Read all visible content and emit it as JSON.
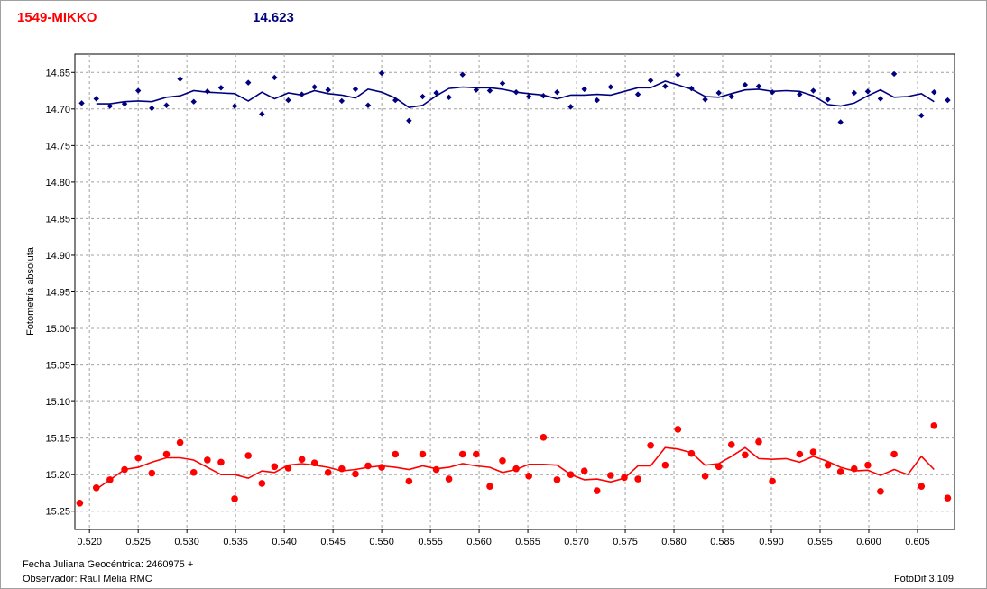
{
  "header": {
    "object_name": "1549-MIKKO",
    "magnitude_label": "14.623"
  },
  "footer": {
    "date_label": "Fecha Juliana Geocéntrica: 2460975 +",
    "observer_label": "Observador: Raul Melia RMC",
    "software_label": "FotoDif 3.109"
  },
  "chart_data": {
    "type": "scatter",
    "ylabel": "Fotometría absoluta",
    "xlabel": "",
    "xlim": [
      0.5185,
      0.6088
    ],
    "ylim": [
      14.625,
      15.275
    ],
    "y_inverted": true,
    "grid": true,
    "x_ticks": [
      "0.520",
      "0.525",
      "0.530",
      "0.535",
      "0.540",
      "0.545",
      "0.550",
      "0.555",
      "0.560",
      "0.565",
      "0.570",
      "0.575",
      "0.580",
      "0.585",
      "0.590",
      "0.595",
      "0.600",
      "0.605"
    ],
    "y_ticks": [
      "14.65",
      "14.70",
      "14.75",
      "14.80",
      "14.85",
      "14.90",
      "14.95",
      "15.00",
      "15.05",
      "15.10",
      "15.15",
      "15.20",
      "15.25"
    ],
    "series": [
      {
        "color": "#00007f",
        "marker": "diamond",
        "points": [
          [
            0.5192,
            14.692
          ],
          [
            0.5207,
            14.686
          ],
          [
            0.5221,
            14.696
          ],
          [
            0.5236,
            14.693
          ],
          [
            0.525,
            14.675
          ],
          [
            0.5264,
            14.699
          ],
          [
            0.5279,
            14.695
          ],
          [
            0.5293,
            14.659
          ],
          [
            0.5307,
            14.69
          ],
          [
            0.5321,
            14.676
          ],
          [
            0.5335,
            14.671
          ],
          [
            0.5349,
            14.696
          ],
          [
            0.5363,
            14.664
          ],
          [
            0.5377,
            14.707
          ],
          [
            0.539,
            14.657
          ],
          [
            0.5404,
            14.688
          ],
          [
            0.5418,
            14.68
          ],
          [
            0.5431,
            14.67
          ],
          [
            0.5445,
            14.674
          ],
          [
            0.5459,
            14.689
          ],
          [
            0.5473,
            14.673
          ],
          [
            0.5486,
            14.695
          ],
          [
            0.55,
            14.651
          ],
          [
            0.5514,
            14.688
          ],
          [
            0.5528,
            14.716
          ],
          [
            0.5542,
            14.683
          ],
          [
            0.5556,
            14.678
          ],
          [
            0.5569,
            14.684
          ],
          [
            0.5583,
            14.653
          ],
          [
            0.5597,
            14.674
          ],
          [
            0.5611,
            14.675
          ],
          [
            0.5624,
            14.665
          ],
          [
            0.5638,
            14.677
          ],
          [
            0.5651,
            14.683
          ],
          [
            0.5666,
            14.682
          ],
          [
            0.568,
            14.677
          ],
          [
            0.5694,
            14.697
          ],
          [
            0.5708,
            14.673
          ],
          [
            0.5721,
            14.688
          ],
          [
            0.5735,
            14.67
          ],
          [
            0.5763,
            14.68
          ],
          [
            0.5776,
            14.661
          ],
          [
            0.5791,
            14.669
          ],
          [
            0.5804,
            14.653
          ],
          [
            0.5818,
            14.672
          ],
          [
            0.5832,
            14.687
          ],
          [
            0.5846,
            14.678
          ],
          [
            0.5859,
            14.683
          ],
          [
            0.5873,
            14.667
          ],
          [
            0.5887,
            14.669
          ],
          [
            0.5901,
            14.677
          ],
          [
            0.5929,
            14.68
          ],
          [
            0.5943,
            14.675
          ],
          [
            0.5958,
            14.687
          ],
          [
            0.5971,
            14.718
          ],
          [
            0.5985,
            14.678
          ],
          [
            0.5999,
            14.676
          ],
          [
            0.6012,
            14.686
          ],
          [
            0.6026,
            14.652
          ],
          [
            0.6054,
            14.709
          ],
          [
            0.6067,
            14.677
          ],
          [
            0.6081,
            14.688
          ]
        ],
        "trend": [
          [
            0.5207,
            14.693
          ],
          [
            0.5221,
            14.693
          ],
          [
            0.5236,
            14.69
          ],
          [
            0.525,
            14.689
          ],
          [
            0.5264,
            14.69
          ],
          [
            0.5279,
            14.684
          ],
          [
            0.5293,
            14.682
          ],
          [
            0.5307,
            14.675
          ],
          [
            0.5321,
            14.677
          ],
          [
            0.5335,
            14.678
          ],
          [
            0.5349,
            14.679
          ],
          [
            0.5363,
            14.689
          ],
          [
            0.5377,
            14.677
          ],
          [
            0.539,
            14.686
          ],
          [
            0.5404,
            14.678
          ],
          [
            0.5418,
            14.681
          ],
          [
            0.5431,
            14.675
          ],
          [
            0.5445,
            14.679
          ],
          [
            0.5459,
            14.681
          ],
          [
            0.5473,
            14.685
          ],
          [
            0.5486,
            14.673
          ],
          [
            0.55,
            14.677
          ],
          [
            0.5514,
            14.685
          ],
          [
            0.5528,
            14.698
          ],
          [
            0.5542,
            14.695
          ],
          [
            0.5556,
            14.682
          ],
          [
            0.5569,
            14.672
          ],
          [
            0.5583,
            14.67
          ],
          [
            0.5597,
            14.671
          ],
          [
            0.5611,
            14.671
          ],
          [
            0.5624,
            14.673
          ],
          [
            0.5638,
            14.677
          ],
          [
            0.5651,
            14.679
          ],
          [
            0.5666,
            14.681
          ],
          [
            0.568,
            14.686
          ],
          [
            0.5694,
            14.681
          ],
          [
            0.5708,
            14.681
          ],
          [
            0.5721,
            14.68
          ],
          [
            0.5735,
            14.681
          ],
          [
            0.5749,
            14.676
          ],
          [
            0.5763,
            14.671
          ],
          [
            0.5776,
            14.671
          ],
          [
            0.5791,
            14.662
          ],
          [
            0.5804,
            14.667
          ],
          [
            0.5818,
            14.673
          ],
          [
            0.5832,
            14.683
          ],
          [
            0.5846,
            14.684
          ],
          [
            0.5859,
            14.679
          ],
          [
            0.5873,
            14.674
          ],
          [
            0.5887,
            14.673
          ],
          [
            0.5901,
            14.676
          ],
          [
            0.5915,
            14.675
          ],
          [
            0.5929,
            14.676
          ],
          [
            0.5943,
            14.682
          ],
          [
            0.5958,
            14.694
          ],
          [
            0.5971,
            14.696
          ],
          [
            0.5985,
            14.692
          ],
          [
            0.5999,
            14.682
          ],
          [
            0.6012,
            14.674
          ],
          [
            0.6026,
            14.684
          ],
          [
            0.604,
            14.683
          ],
          [
            0.6054,
            14.679
          ],
          [
            0.6067,
            14.69
          ]
        ]
      },
      {
        "color": "#ff0000",
        "marker": "circle",
        "points": [
          [
            0.519,
            15.239
          ],
          [
            0.5207,
            15.218
          ],
          [
            0.5221,
            15.207
          ],
          [
            0.5236,
            15.193
          ],
          [
            0.525,
            15.177
          ],
          [
            0.5264,
            15.198
          ],
          [
            0.5279,
            15.172
          ],
          [
            0.5293,
            15.156
          ],
          [
            0.5307,
            15.197
          ],
          [
            0.5321,
            15.18
          ],
          [
            0.5335,
            15.183
          ],
          [
            0.5349,
            15.233
          ],
          [
            0.5363,
            15.174
          ],
          [
            0.5377,
            15.212
          ],
          [
            0.539,
            15.189
          ],
          [
            0.5404,
            15.191
          ],
          [
            0.5418,
            15.179
          ],
          [
            0.5431,
            15.184
          ],
          [
            0.5445,
            15.197
          ],
          [
            0.5459,
            15.192
          ],
          [
            0.5473,
            15.199
          ],
          [
            0.5486,
            15.188
          ],
          [
            0.55,
            15.19
          ],
          [
            0.5514,
            15.172
          ],
          [
            0.5528,
            15.209
          ],
          [
            0.5542,
            15.172
          ],
          [
            0.5556,
            15.193
          ],
          [
            0.5569,
            15.206
          ],
          [
            0.5583,
            15.172
          ],
          [
            0.5597,
            15.172
          ],
          [
            0.5611,
            15.216
          ],
          [
            0.5624,
            15.181
          ],
          [
            0.5638,
            15.192
          ],
          [
            0.5651,
            15.202
          ],
          [
            0.5666,
            15.149
          ],
          [
            0.568,
            15.207
          ],
          [
            0.5694,
            15.2
          ],
          [
            0.5708,
            15.195
          ],
          [
            0.5721,
            15.222
          ],
          [
            0.5735,
            15.201
          ],
          [
            0.5749,
            15.204
          ],
          [
            0.5763,
            15.206
          ],
          [
            0.5776,
            15.16
          ],
          [
            0.5791,
            15.187
          ],
          [
            0.5804,
            15.138
          ],
          [
            0.5818,
            15.171
          ],
          [
            0.5832,
            15.202
          ],
          [
            0.5846,
            15.189
          ],
          [
            0.5859,
            15.159
          ],
          [
            0.5873,
            15.173
          ],
          [
            0.5887,
            15.155
          ],
          [
            0.5901,
            15.209
          ],
          [
            0.5929,
            15.172
          ],
          [
            0.5943,
            15.169
          ],
          [
            0.5958,
            15.187
          ],
          [
            0.5971,
            15.196
          ],
          [
            0.5985,
            15.192
          ],
          [
            0.5999,
            15.187
          ],
          [
            0.6012,
            15.223
          ],
          [
            0.6026,
            15.172
          ],
          [
            0.6054,
            15.216
          ],
          [
            0.6067,
            15.133
          ],
          [
            0.6081,
            15.232
          ]
        ],
        "trend": [
          [
            0.5207,
            15.22
          ],
          [
            0.5221,
            15.207
          ],
          [
            0.5236,
            15.193
          ],
          [
            0.525,
            15.19
          ],
          [
            0.5264,
            15.183
          ],
          [
            0.5279,
            15.177
          ],
          [
            0.5293,
            15.177
          ],
          [
            0.5307,
            15.18
          ],
          [
            0.5321,
            15.19
          ],
          [
            0.5335,
            15.2
          ],
          [
            0.5349,
            15.2
          ],
          [
            0.5363,
            15.205
          ],
          [
            0.5377,
            15.195
          ],
          [
            0.539,
            15.197
          ],
          [
            0.5404,
            15.187
          ],
          [
            0.5418,
            15.185
          ],
          [
            0.5431,
            15.187
          ],
          [
            0.5445,
            15.19
          ],
          [
            0.5459,
            15.195
          ],
          [
            0.5473,
            15.193
          ],
          [
            0.5486,
            15.19
          ],
          [
            0.55,
            15.188
          ],
          [
            0.5514,
            15.19
          ],
          [
            0.5528,
            15.193
          ],
          [
            0.5542,
            15.188
          ],
          [
            0.5556,
            15.192
          ],
          [
            0.5569,
            15.19
          ],
          [
            0.5583,
            15.185
          ],
          [
            0.5597,
            15.188
          ],
          [
            0.5611,
            15.19
          ],
          [
            0.5624,
            15.197
          ],
          [
            0.5638,
            15.193
          ],
          [
            0.5651,
            15.186
          ],
          [
            0.5666,
            15.186
          ],
          [
            0.568,
            15.187
          ],
          [
            0.5694,
            15.2
          ],
          [
            0.5708,
            15.207
          ],
          [
            0.5721,
            15.206
          ],
          [
            0.5735,
            15.21
          ],
          [
            0.5749,
            15.205
          ],
          [
            0.5763,
            15.188
          ],
          [
            0.5776,
            15.188
          ],
          [
            0.5791,
            15.163
          ],
          [
            0.5804,
            15.165
          ],
          [
            0.5818,
            15.17
          ],
          [
            0.5832,
            15.187
          ],
          [
            0.5846,
            15.185
          ],
          [
            0.5859,
            15.175
          ],
          [
            0.5873,
            15.163
          ],
          [
            0.5887,
            15.178
          ],
          [
            0.5901,
            15.179
          ],
          [
            0.5915,
            15.178
          ],
          [
            0.5929,
            15.183
          ],
          [
            0.5943,
            15.175
          ],
          [
            0.5958,
            15.182
          ],
          [
            0.5971,
            15.19
          ],
          [
            0.5985,
            15.195
          ],
          [
            0.5999,
            15.194
          ],
          [
            0.6012,
            15.201
          ],
          [
            0.6026,
            15.193
          ],
          [
            0.604,
            15.2
          ],
          [
            0.6054,
            15.175
          ],
          [
            0.6067,
            15.193
          ]
        ]
      }
    ]
  }
}
